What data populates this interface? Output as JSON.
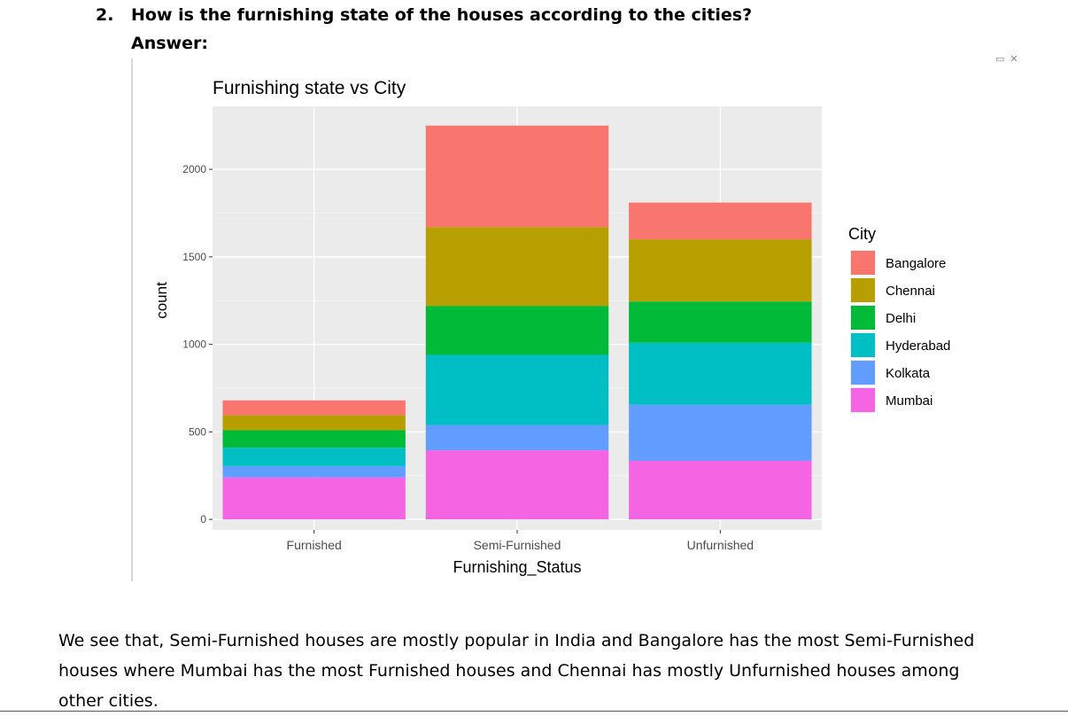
{
  "question": {
    "number": "2.",
    "text": "How is the furnishing state of the houses according to the cities?"
  },
  "answer_label": "Answer:",
  "corner_icons": {
    "minimize": "minimize-icon",
    "close": "close-icon",
    "minimize_glyph": "▭",
    "close_glyph": "✕"
  },
  "chart_data": {
    "type": "bar",
    "stacked": true,
    "title": "Furnishing state vs City",
    "xlabel": "Furnishing_Status",
    "ylabel": "count",
    "categories": [
      "Furnished",
      "Semi-Furnished",
      "Unfurnished"
    ],
    "ylim": [
      -60,
      2360
    ],
    "yticks": [
      0,
      500,
      1000,
      1500,
      2000
    ],
    "ytick_labels": [
      "0",
      "500",
      "1000",
      "1500",
      "2000"
    ],
    "legend_title": "City",
    "legend_position": "right",
    "grid": true,
    "series": [
      {
        "name": "Mumbai",
        "color": "#F564E3",
        "values": [
          240,
          395,
          335
        ]
      },
      {
        "name": "Kolkata",
        "color": "#619CFF",
        "values": [
          65,
          145,
          320
        ]
      },
      {
        "name": "Hyderabad",
        "color": "#00BFC4",
        "values": [
          105,
          400,
          355
        ]
      },
      {
        "name": "Delhi",
        "color": "#00BA38",
        "values": [
          100,
          280,
          235
        ]
      },
      {
        "name": "Chennai",
        "color": "#B79F00",
        "values": [
          85,
          450,
          355
        ]
      },
      {
        "name": "Bangalore",
        "color": "#F8766D",
        "values": [
          85,
          580,
          210
        ]
      }
    ],
    "legend_order": [
      "Bangalore",
      "Chennai",
      "Delhi",
      "Hyderabad",
      "Kolkata",
      "Mumbai"
    ]
  },
  "paragraph": "We see that, Semi-Furnished houses are mostly popular in India and Bangalore has the most Semi-Furnished houses where Mumbai has the most Furnished houses and Chennai has mostly Unfurnished houses among other cities."
}
